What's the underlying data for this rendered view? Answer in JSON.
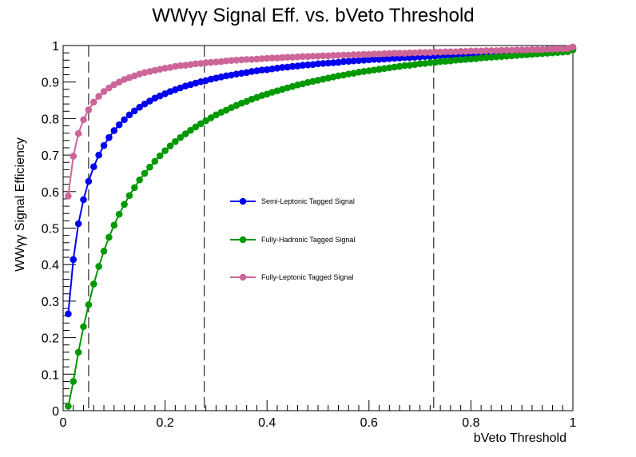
{
  "chart_data": {
    "type": "line",
    "title": "WWγγ Signal Eff. vs. bVeto Threshold",
    "xlabel": "bVeto Threshold",
    "ylabel": "WWγγ Signal Efficiency",
    "xlim": [
      0,
      1
    ],
    "ylim": [
      0,
      1
    ],
    "x_ticks": [
      "0",
      "0.2",
      "0.4",
      "0.6",
      "0.8",
      "1"
    ],
    "y_ticks": [
      "0",
      "0.1",
      "0.2",
      "0.3",
      "0.4",
      "0.5",
      "0.6",
      "0.7",
      "0.8",
      "0.9",
      "1"
    ],
    "x_ticks_values": [
      0,
      0.2,
      0.4,
      0.6,
      0.8,
      1
    ],
    "y_ticks_values": [
      0,
      0.1,
      0.2,
      0.3,
      0.4,
      0.5,
      0.6,
      0.7,
      0.8,
      0.9,
      1
    ],
    "grid": false,
    "legend_position": "center",
    "x": [
      0.01,
      0.02,
      0.03,
      0.04,
      0.05,
      0.06,
      0.07,
      0.08,
      0.09,
      0.1,
      0.11,
      0.12,
      0.13,
      0.14,
      0.15,
      0.16,
      0.17,
      0.18,
      0.19,
      0.2,
      0.21,
      0.22,
      0.23,
      0.24,
      0.25,
      0.26,
      0.27,
      0.28,
      0.29,
      0.3,
      0.31,
      0.32,
      0.33,
      0.34,
      0.35,
      0.36,
      0.37,
      0.38,
      0.39,
      0.4,
      0.41,
      0.42,
      0.43,
      0.44,
      0.45,
      0.46,
      0.47,
      0.48,
      0.49,
      0.5,
      0.51,
      0.52,
      0.53,
      0.54,
      0.55,
      0.56,
      0.57,
      0.58,
      0.59,
      0.6,
      0.61,
      0.62,
      0.63,
      0.64,
      0.65,
      0.66,
      0.67,
      0.68,
      0.69,
      0.7,
      0.71,
      0.72,
      0.73,
      0.74,
      0.75,
      0.76,
      0.77,
      0.78,
      0.79,
      0.8,
      0.81,
      0.82,
      0.83,
      0.84,
      0.85,
      0.86,
      0.87,
      0.88,
      0.89,
      0.9,
      0.91,
      0.92,
      0.93,
      0.94,
      0.95,
      0.96,
      0.97,
      0.98,
      0.99,
      1.0
    ],
    "series": [
      {
        "name": "Semi-Leptonic Tagged Signal",
        "color": "#0000ee",
        "values": [
          0.265,
          0.414,
          0.512,
          0.578,
          0.628,
          0.668,
          0.7,
          0.726,
          0.748,
          0.767,
          0.783,
          0.797,
          0.81,
          0.821,
          0.831,
          0.84,
          0.848,
          0.856,
          0.862,
          0.868,
          0.874,
          0.879,
          0.884,
          0.889,
          0.893,
          0.897,
          0.901,
          0.904,
          0.908,
          0.911,
          0.914,
          0.917,
          0.919,
          0.922,
          0.924,
          0.926,
          0.929,
          0.931,
          0.933,
          0.934,
          0.936,
          0.938,
          0.94,
          0.941,
          0.943,
          0.944,
          0.946,
          0.947,
          0.948,
          0.95,
          0.951,
          0.952,
          0.953,
          0.954,
          0.956,
          0.957,
          0.958,
          0.959,
          0.96,
          0.961,
          0.962,
          0.962,
          0.963,
          0.964,
          0.965,
          0.966,
          0.967,
          0.967,
          0.968,
          0.969,
          0.97,
          0.97,
          0.971,
          0.972,
          0.973,
          0.973,
          0.974,
          0.975,
          0.975,
          0.976,
          0.976,
          0.977,
          0.978,
          0.978,
          0.979,
          0.979,
          0.98,
          0.981,
          0.981,
          0.982,
          0.982,
          0.983,
          0.983,
          0.984,
          0.984,
          0.985,
          0.985,
          0.986,
          0.986,
          0.993
        ]
      },
      {
        "name": "Fully-Hadronic Tagged Signal",
        "color": "#009900",
        "values": [
          0.012,
          0.08,
          0.16,
          0.23,
          0.29,
          0.347,
          0.395,
          0.437,
          0.475,
          0.508,
          0.538,
          0.565,
          0.589,
          0.611,
          0.632,
          0.65,
          0.667,
          0.683,
          0.698,
          0.712,
          0.725,
          0.737,
          0.748,
          0.758,
          0.768,
          0.777,
          0.786,
          0.794,
          0.802,
          0.81,
          0.817,
          0.823,
          0.83,
          0.836,
          0.842,
          0.847,
          0.853,
          0.858,
          0.863,
          0.867,
          0.872,
          0.876,
          0.88,
          0.884,
          0.888,
          0.892,
          0.895,
          0.899,
          0.902,
          0.905,
          0.908,
          0.911,
          0.914,
          0.917,
          0.919,
          0.922,
          0.924,
          0.927,
          0.929,
          0.931,
          0.933,
          0.935,
          0.937,
          0.939,
          0.941,
          0.943,
          0.945,
          0.946,
          0.948,
          0.95,
          0.951,
          0.953,
          0.954,
          0.956,
          0.957,
          0.958,
          0.96,
          0.961,
          0.962,
          0.963,
          0.964,
          0.966,
          0.967,
          0.968,
          0.969,
          0.97,
          0.971,
          0.972,
          0.973,
          0.974,
          0.975,
          0.976,
          0.977,
          0.978,
          0.979,
          0.98,
          0.981,
          0.982,
          0.983,
          0.988
        ]
      },
      {
        "name": "Fully-Leptonic Tagged Signal",
        "color": "#cc6699",
        "values": [
          0.588,
          0.697,
          0.759,
          0.797,
          0.824,
          0.845,
          0.861,
          0.874,
          0.884,
          0.893,
          0.9,
          0.907,
          0.912,
          0.917,
          0.922,
          0.926,
          0.929,
          0.932,
          0.935,
          0.938,
          0.94,
          0.943,
          0.945,
          0.946,
          0.948,
          0.95,
          0.951,
          0.953,
          0.954,
          0.955,
          0.956,
          0.958,
          0.959,
          0.96,
          0.961,
          0.962,
          0.962,
          0.963,
          0.964,
          0.965,
          0.966,
          0.966,
          0.967,
          0.968,
          0.968,
          0.969,
          0.97,
          0.97,
          0.971,
          0.971,
          0.972,
          0.972,
          0.973,
          0.973,
          0.974,
          0.974,
          0.975,
          0.975,
          0.976,
          0.976,
          0.977,
          0.977,
          0.978,
          0.978,
          0.979,
          0.979,
          0.979,
          0.98,
          0.98,
          0.981,
          0.981,
          0.981,
          0.982,
          0.982,
          0.983,
          0.983,
          0.983,
          0.984,
          0.984,
          0.985,
          0.985,
          0.985,
          0.986,
          0.986,
          0.986,
          0.987,
          0.987,
          0.987,
          0.988,
          0.988,
          0.988,
          0.989,
          0.989,
          0.989,
          0.99,
          0.99,
          0.991,
          0.991,
          0.992,
          0.996
        ]
      }
    ],
    "vertical_lines": [
      0.05,
      0.277,
      0.727
    ]
  }
}
